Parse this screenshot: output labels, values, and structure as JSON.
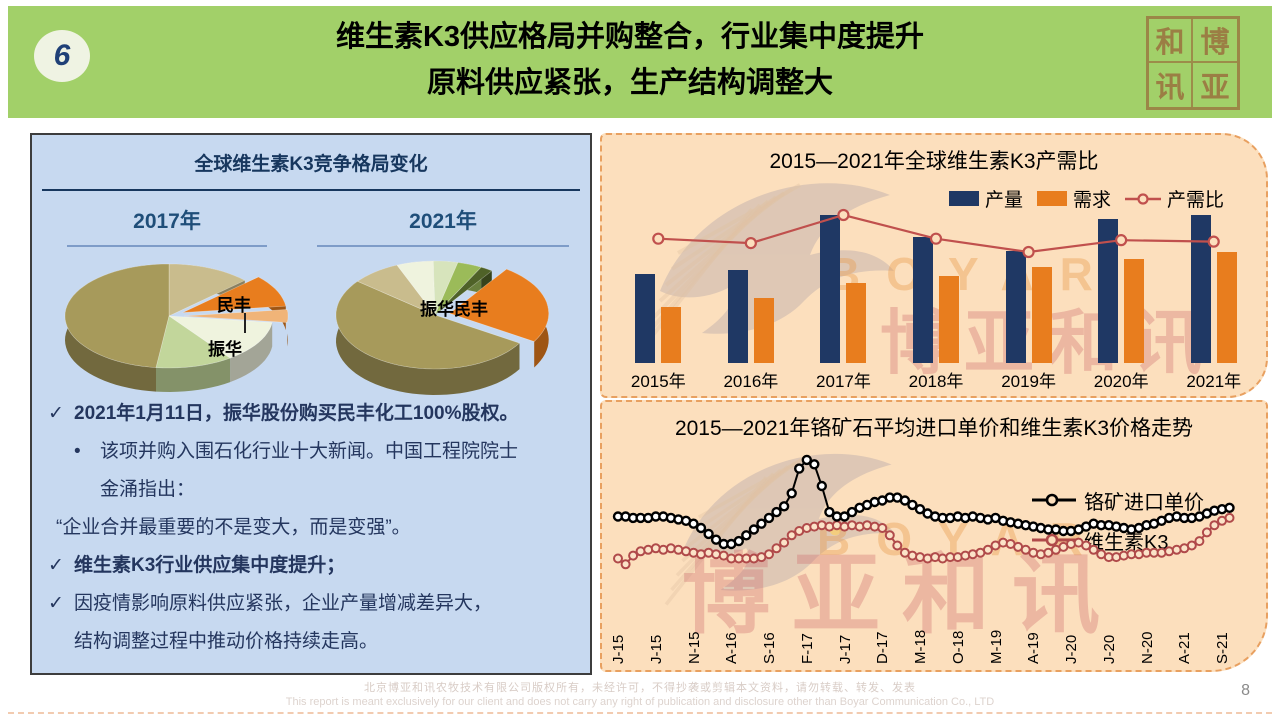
{
  "header": {
    "number": "6",
    "title_line1": "维生素K3供应格局并购整合，行业集中度提升",
    "title_line2": "原料供应紧张，生产结构调整大",
    "seal_chars": [
      "和",
      "博",
      "讯",
      "亚"
    ]
  },
  "left_panel": {
    "title": "全球维生素K3竞争格局变化",
    "year_left": "2017年",
    "year_right": "2021年",
    "pie_labels": {
      "minfeng": "民丰",
      "zhenhua": "振华",
      "zhenhua_minfeng": "振华民丰"
    },
    "bullets": [
      {
        "type": "check-bold",
        "marker": "✓",
        "text": "2021年1月11日，振华股份购买民丰化工100%股权。"
      },
      {
        "type": "dot",
        "marker": "•",
        "text": "该项并购入围石化行业十大新闻。中国工程院院士"
      },
      {
        "type": "indent2",
        "marker": "",
        "text": "金涌指出："
      },
      {
        "type": "plain",
        "marker": "",
        "text": "“企业合并最重要的不是变大，而是变强”。"
      },
      {
        "type": "check-bold",
        "marker": "✓",
        "text": "维生素K3行业供应集中度提升；"
      },
      {
        "type": "check",
        "marker": "✓",
        "text": "因疫情影响原料供应紧张，企业产量增减差异大，"
      },
      {
        "type": "indent1",
        "marker": "",
        "text": "结构调整过程中推动价格持续走高。"
      }
    ]
  },
  "watermark": {
    "en": "BOYAR",
    "cn": "博亚和讯"
  },
  "chart_data": [
    {
      "id": "supply_demand",
      "type": "bar",
      "title": "2015—2021年全球维生素K3产需比",
      "categories": [
        "2015年",
        "2016年",
        "2017年",
        "2018年",
        "2019年",
        "2020年",
        "2021年"
      ],
      "value_scale": "relative 0-100 (no y-axis shown in source)",
      "legend_position": "top-right",
      "series": [
        {
          "name": "产量",
          "kind": "bar",
          "color": "#1F3864",
          "values": [
            60,
            63,
            100,
            85,
            76,
            97,
            100
          ]
        },
        {
          "name": "需求",
          "kind": "bar",
          "color": "#E87D1E",
          "values": [
            38,
            44,
            54,
            59,
            65,
            70,
            75
          ]
        },
        {
          "name": "产需比",
          "kind": "line",
          "color": "#C0504D",
          "values": [
            84,
            81,
            100,
            84,
            75,
            83,
            82
          ]
        }
      ]
    },
    {
      "id": "price_trend",
      "type": "line",
      "title": "2015—2021年铬矿石平均进口单价和维生素K3价格走势",
      "x_tick_labels": [
        "J-15",
        "J-15",
        "N-15",
        "A-16",
        "S-16",
        "F-17",
        "J-17",
        "D-17",
        "M-18",
        "O-18",
        "M-19",
        "A-19",
        "J-20",
        "J-20",
        "N-20",
        "A-21",
        "S-21"
      ],
      "tick_every": 5,
      "value_scale": "relative 0-100 (no y-axis shown in source)",
      "series": [
        {
          "name": "铬矿进口单价",
          "color": "#000000",
          "values": [
            59,
            59,
            58,
            58,
            58,
            59,
            59,
            58,
            57,
            56,
            54,
            51,
            47,
            43,
            40,
            40,
            42,
            46,
            50,
            54,
            58,
            62,
            66,
            75,
            92,
            98,
            95,
            80,
            62,
            59,
            59,
            62,
            65,
            67,
            69,
            70,
            72,
            72,
            70,
            67,
            64,
            61,
            59,
            58,
            58,
            59,
            58,
            59,
            58,
            57,
            58,
            56,
            55,
            54,
            53,
            52,
            51,
            50,
            50,
            49,
            49,
            50,
            52,
            54,
            53,
            53,
            52,
            51,
            50,
            51,
            53,
            54,
            56,
            58,
            59,
            58,
            58,
            59,
            61,
            63,
            64,
            65
          ]
        },
        {
          "name": "维生素K3",
          "color": "#B04A4A",
          "values": [
            30,
            26,
            32,
            35,
            36,
            37,
            36,
            37,
            36,
            35,
            34,
            33,
            34,
            33,
            32,
            30,
            30,
            30,
            30,
            31,
            33,
            37,
            41,
            46,
            49,
            51,
            52,
            53,
            52,
            53,
            52,
            53,
            52,
            53,
            52,
            51,
            46,
            39,
            34,
            32,
            31,
            30,
            31,
            30,
            31,
            31,
            32,
            33,
            34,
            36,
            39,
            41,
            40,
            38,
            36,
            34,
            33,
            34,
            36,
            38,
            40,
            41,
            39,
            36,
            33,
            31,
            31,
            32,
            33,
            33,
            34,
            34,
            34,
            35,
            36,
            37,
            39,
            42,
            48,
            53,
            56,
            58
          ]
        }
      ]
    },
    {
      "id": "pie_2017",
      "type": "pie",
      "title": "2017年",
      "start_angle_deg": -90,
      "slices": [
        {
          "label": "",
          "value": 13,
          "color": "#C9BC8D",
          "exploded": false
        },
        {
          "label": "民丰",
          "value": 10,
          "color": "#E87D1E",
          "exploded": true
        },
        {
          "label": "振华",
          "value": 4,
          "color": "#F0B478",
          "exploded": true
        },
        {
          "label": "",
          "value": 13,
          "color": "#EFF3DE",
          "exploded": false
        },
        {
          "label": "",
          "value": 12,
          "color": "#C2D69B",
          "exploded": false
        },
        {
          "label": "",
          "value": 48,
          "color": "#A79A5B",
          "exploded": false
        }
      ]
    },
    {
      "id": "pie_2021",
      "type": "pie",
      "title": "2021年",
      "start_angle_deg": -55,
      "slices": [
        {
          "label": "振华民丰",
          "value": 24,
          "color": "#E87D1E",
          "exploded": true
        },
        {
          "label": "",
          "value": 52,
          "color": "#A79A5B",
          "exploded": false
        },
        {
          "label": "",
          "value": 8,
          "color": "#C9BC8D",
          "exploded": false
        },
        {
          "label": "",
          "value": 6,
          "color": "#EFF3DE",
          "exploded": false
        },
        {
          "label": "",
          "value": 4,
          "color": "#D7E4BC",
          "exploded": false
        },
        {
          "label": "",
          "value": 4,
          "color": "#9BBB59",
          "exploded": false
        },
        {
          "label": "",
          "value": 2,
          "color": "#4F6228",
          "exploded": false
        }
      ]
    }
  ],
  "footer": {
    "cn": "北京博亚和讯农牧技术有限公司版权所有，未经许可，不得抄袭或剪辑本文资料，请勿转载、转发、发表",
    "en": "This report is meant exclusively for our client and does not carry any right of publication and disclosure other than Boyar Communication Co., LTD",
    "page": "8"
  },
  "colors": {
    "header_green": "#A2D069",
    "left_panel_blue": "#C7D9F0",
    "right_panel_peach": "#FCDFBD",
    "navy_bar": "#1F3864",
    "orange_bar": "#E87D1E",
    "ratio_line_red": "#C0504D",
    "k3_line_red": "#B04A4A",
    "chrome_line_black": "#000000",
    "dashed_border_orange": "#E8A060"
  }
}
